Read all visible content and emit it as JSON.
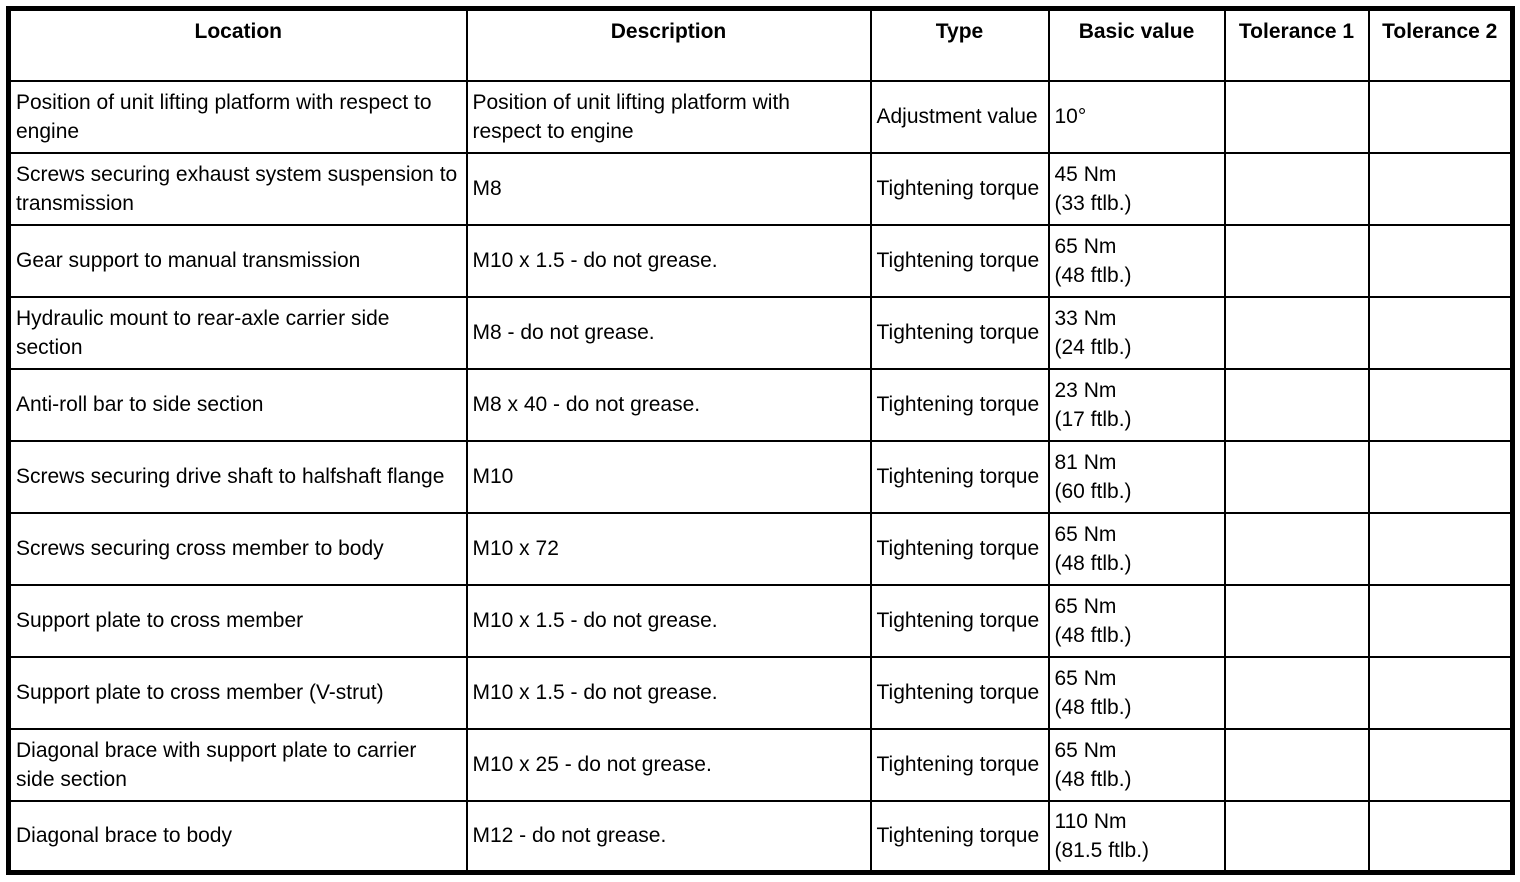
{
  "table": {
    "headers": {
      "location": "Location",
      "description": "Description",
      "type": "Type",
      "basic_value": "Basic value",
      "tolerance_1": "Tolerance 1",
      "tolerance_2": "Tolerance 2"
    }
  },
  "rows": [
    {
      "location": "Position of unit lifting platform with respect to engine",
      "description": "Position of unit lifting platform with respect to engine",
      "type": "Adjustment value",
      "basic_value_1": "10°",
      "basic_value_2": "",
      "tolerance_1": "",
      "tolerance_2": ""
    },
    {
      "location": "Screws securing exhaust system suspension to transmission",
      "description": "M8",
      "type": "Tightening torque",
      "basic_value_1": "45 Nm",
      "basic_value_2": "(33 ftlb.)",
      "tolerance_1": "",
      "tolerance_2": ""
    },
    {
      "location": "Gear support to manual transmission",
      "description": "M10 x 1.5 - do not grease.",
      "type": "Tightening torque",
      "basic_value_1": "65 Nm",
      "basic_value_2": "(48 ftlb.)",
      "tolerance_1": "",
      "tolerance_2": ""
    },
    {
      "location": "Hydraulic mount to rear-axle carrier side section",
      "description": "M8 - do not grease.",
      "type": "Tightening torque",
      "basic_value_1": "33 Nm",
      "basic_value_2": "(24 ftlb.)",
      "tolerance_1": "",
      "tolerance_2": ""
    },
    {
      "location": "Anti-roll bar to side section",
      "description": "M8 x 40 - do not grease.",
      "type": "Tightening torque",
      "basic_value_1": "23 Nm",
      "basic_value_2": "(17 ftlb.)",
      "tolerance_1": "",
      "tolerance_2": ""
    },
    {
      "location": "Screws securing drive shaft to halfshaft flange",
      "description": "M10",
      "type": "Tightening torque",
      "basic_value_1": "81 Nm",
      "basic_value_2": "(60 ftlb.)",
      "tolerance_1": "",
      "tolerance_2": ""
    },
    {
      "location": "Screws securing cross member to body",
      "description": "M10 x 72",
      "type": "Tightening torque",
      "basic_value_1": "65 Nm",
      "basic_value_2": "(48 ftlb.)",
      "tolerance_1": "",
      "tolerance_2": ""
    },
    {
      "location": "Support plate to cross member",
      "description": "M10 x 1.5 - do not grease.",
      "type": "Tightening torque",
      "basic_value_1": "65 Nm",
      "basic_value_2": "(48 ftlb.)",
      "tolerance_1": "",
      "tolerance_2": ""
    },
    {
      "location": "Support plate to cross member (V-strut)",
      "description": "M10 x 1.5 - do not grease.",
      "type": "Tightening torque",
      "basic_value_1": "65 Nm",
      "basic_value_2": "(48 ftlb.)",
      "tolerance_1": "",
      "tolerance_2": ""
    },
    {
      "location": "Diagonal brace with support plate to carrier side section",
      "description": "M10 x 25 - do not grease.",
      "type": "Tightening torque",
      "basic_value_1": "65 Nm",
      "basic_value_2": "(48 ftlb.)",
      "tolerance_1": "",
      "tolerance_2": ""
    },
    {
      "location": "Diagonal brace to body",
      "description": "M12 - do not grease.",
      "type": "Tightening torque",
      "basic_value_1": "110 Nm",
      "basic_value_2": "(81.5 ftlb.)",
      "tolerance_1": "",
      "tolerance_2": ""
    }
  ]
}
